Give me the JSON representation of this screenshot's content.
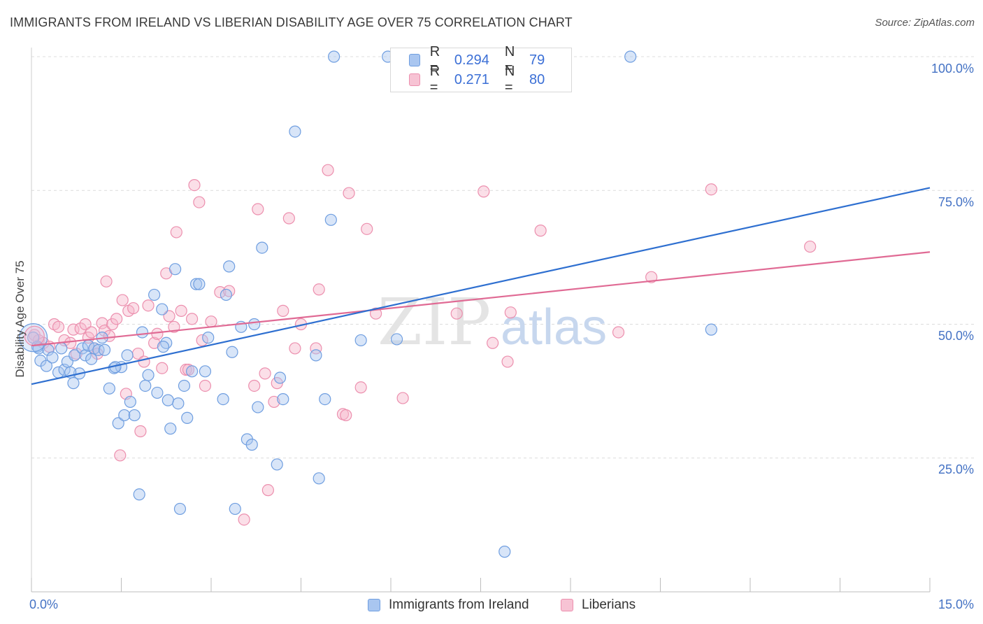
{
  "header": {
    "title": "IMMIGRANTS FROM IRELAND VS LIBERIAN DISABILITY AGE OVER 75 CORRELATION CHART",
    "source": "Source: ZipAtlas.com"
  },
  "legend": {
    "r_label": "R = ",
    "n_label": "N = ",
    "rows": [
      {
        "r": "0.294",
        "n": "79"
      },
      {
        "r": "0.271",
        "n": "80"
      }
    ]
  },
  "watermark": {
    "zip": "ZIP",
    "atlas": "atlas"
  },
  "colors": {
    "blue_fill": "#a9c6f0",
    "blue_stroke": "#6f9ee0",
    "blue_line": "#2e6fd0",
    "pink_fill": "#f7b8cd",
    "pink_stroke": "#ec8fae",
    "pink_line": "#e06a94",
    "tick_text": "#4472c4",
    "grid": "#dcdcdc"
  },
  "chart_data": {
    "type": "scatter",
    "title": "IMMIGRANTS FROM IRELAND VS LIBERIAN DISABILITY AGE OVER 75 CORRELATION CHART",
    "xlabel": "",
    "ylabel": "Disability Age Over 75",
    "xlim": [
      0,
      15
    ],
    "ylim": [
      0,
      102
    ],
    "x_tick_labels": [
      "0.0%",
      "15.0%"
    ],
    "y_ticks": [
      25,
      50,
      75,
      100
    ],
    "y_tick_labels": [
      "25.0%",
      "50.0%",
      "75.0%",
      "100.0%"
    ],
    "grid": true,
    "legend_position": "top-center",
    "series": [
      {
        "name": "Immigrants from Ireland",
        "color": "#6f9ee0",
        "r": 0.294,
        "n": 79,
        "trend": {
          "x": [
            0,
            15
          ],
          "y": [
            38.8,
            75.5
          ]
        },
        "points": [
          [
            0.03,
            47.5
          ],
          [
            0.1,
            45.8
          ],
          [
            0.12,
            45.5
          ],
          [
            0.15,
            43.2
          ],
          [
            0.25,
            42.2
          ],
          [
            0.28,
            45.2
          ],
          [
            0.35,
            43.8
          ],
          [
            0.45,
            41.0
          ],
          [
            0.55,
            41.5
          ],
          [
            0.6,
            43.0
          ],
          [
            0.7,
            39.0
          ],
          [
            0.72,
            44.2
          ],
          [
            0.8,
            40.8
          ],
          [
            0.85,
            45.5
          ],
          [
            0.9,
            44.2
          ],
          [
            0.95,
            46.0
          ],
          [
            1.0,
            43.5
          ],
          [
            1.05,
            45.5
          ],
          [
            1.12,
            45.2
          ],
          [
            1.18,
            47.5
          ],
          [
            1.22,
            45.2
          ],
          [
            1.3,
            38.0
          ],
          [
            1.38,
            41.8
          ],
          [
            1.45,
            31.5
          ],
          [
            1.5,
            42.0
          ],
          [
            1.55,
            33.0
          ],
          [
            1.6,
            44.2
          ],
          [
            1.65,
            35.5
          ],
          [
            1.72,
            33.0
          ],
          [
            1.8,
            18.2
          ],
          [
            1.85,
            48.5
          ],
          [
            1.9,
            38.5
          ],
          [
            1.95,
            40.5
          ],
          [
            2.05,
            55.5
          ],
          [
            2.1,
            37.2
          ],
          [
            2.18,
            52.8
          ],
          [
            2.25,
            46.5
          ],
          [
            2.28,
            35.8
          ],
          [
            2.32,
            30.5
          ],
          [
            2.4,
            60.3
          ],
          [
            2.45,
            35.2
          ],
          [
            2.48,
            15.5
          ],
          [
            2.55,
            38.5
          ],
          [
            2.6,
            32.5
          ],
          [
            2.68,
            41.2
          ],
          [
            2.75,
            57.5
          ],
          [
            2.8,
            57.5
          ],
          [
            2.9,
            41.2
          ],
          [
            2.95,
            47.5
          ],
          [
            3.2,
            36.0
          ],
          [
            3.25,
            55.5
          ],
          [
            3.3,
            60.8
          ],
          [
            3.35,
            44.8
          ],
          [
            3.4,
            15.5
          ],
          [
            3.5,
            49.5
          ],
          [
            3.6,
            28.5
          ],
          [
            3.68,
            27.5
          ],
          [
            3.72,
            50.0
          ],
          [
            3.78,
            34.5
          ],
          [
            3.85,
            64.3
          ],
          [
            4.1,
            23.8
          ],
          [
            4.15,
            40.0
          ],
          [
            4.2,
            36.0
          ],
          [
            4.4,
            86.0
          ],
          [
            4.75,
            44.2
          ],
          [
            4.8,
            21.2
          ],
          [
            4.9,
            36.0
          ],
          [
            5.0,
            69.5
          ],
          [
            5.05,
            100.0
          ],
          [
            5.5,
            47.0
          ],
          [
            5.95,
            100.0
          ],
          [
            6.1,
            47.2
          ],
          [
            10.0,
            100.0
          ],
          [
            11.35,
            49.0
          ],
          [
            7.9,
            7.5
          ],
          [
            0.5,
            45.5
          ],
          [
            0.65,
            41.0
          ],
          [
            1.4,
            42.0
          ],
          [
            2.2,
            45.8
          ]
        ]
      },
      {
        "name": "Liberians",
        "color": "#ec8fae",
        "r": 0.271,
        "n": 80,
        "trend": {
          "x": [
            0,
            15
          ],
          "y": [
            46.0,
            63.5
          ]
        },
        "points": [
          [
            0.05,
            48.0
          ],
          [
            0.12,
            47.0
          ],
          [
            0.2,
            46.5
          ],
          [
            0.3,
            45.8
          ],
          [
            0.38,
            50.0
          ],
          [
            0.45,
            49.5
          ],
          [
            0.55,
            47.0
          ],
          [
            0.65,
            46.5
          ],
          [
            0.7,
            49.0
          ],
          [
            0.75,
            44.5
          ],
          [
            0.82,
            49.2
          ],
          [
            0.9,
            50.0
          ],
          [
            0.95,
            47.5
          ],
          [
            1.0,
            48.5
          ],
          [
            1.05,
            45.5
          ],
          [
            1.1,
            44.5
          ],
          [
            1.18,
            50.2
          ],
          [
            1.22,
            48.8
          ],
          [
            1.25,
            58.0
          ],
          [
            1.3,
            47.8
          ],
          [
            1.35,
            50.0
          ],
          [
            1.42,
            51.0
          ],
          [
            1.48,
            25.5
          ],
          [
            1.52,
            54.5
          ],
          [
            1.58,
            37.0
          ],
          [
            1.62,
            52.5
          ],
          [
            1.7,
            53.0
          ],
          [
            1.78,
            44.5
          ],
          [
            1.82,
            30.0
          ],
          [
            1.88,
            43.0
          ],
          [
            1.95,
            53.5
          ],
          [
            2.05,
            46.5
          ],
          [
            2.1,
            48.2
          ],
          [
            2.18,
            41.8
          ],
          [
            2.25,
            59.5
          ],
          [
            2.3,
            51.5
          ],
          [
            2.38,
            49.5
          ],
          [
            2.42,
            67.2
          ],
          [
            2.5,
            52.5
          ],
          [
            2.58,
            41.5
          ],
          [
            2.62,
            41.5
          ],
          [
            2.68,
            51.0
          ],
          [
            2.72,
            76.0
          ],
          [
            2.8,
            72.8
          ],
          [
            2.85,
            47.0
          ],
          [
            2.9,
            38.5
          ],
          [
            3.0,
            50.5
          ],
          [
            3.15,
            56.0
          ],
          [
            3.3,
            56.2
          ],
          [
            3.55,
            13.5
          ],
          [
            3.72,
            38.5
          ],
          [
            3.78,
            71.5
          ],
          [
            3.9,
            40.8
          ],
          [
            3.95,
            19.0
          ],
          [
            4.05,
            35.5
          ],
          [
            4.1,
            39.0
          ],
          [
            4.2,
            52.5
          ],
          [
            4.3,
            69.8
          ],
          [
            4.4,
            45.5
          ],
          [
            4.5,
            50.0
          ],
          [
            4.75,
            45.5
          ],
          [
            4.8,
            56.5
          ],
          [
            4.95,
            78.8
          ],
          [
            5.2,
            33.2
          ],
          [
            5.3,
            74.5
          ],
          [
            5.5,
            38.2
          ],
          [
            5.6,
            67.8
          ],
          [
            5.75,
            52.0
          ],
          [
            6.2,
            36.2
          ],
          [
            7.1,
            52.0
          ],
          [
            7.55,
            74.8
          ],
          [
            7.7,
            46.5
          ],
          [
            7.95,
            43.0
          ],
          [
            8.0,
            52.2
          ],
          [
            8.5,
            67.5
          ],
          [
            9.8,
            48.5
          ],
          [
            10.35,
            58.8
          ],
          [
            11.35,
            75.2
          ],
          [
            13.0,
            64.5
          ],
          [
            5.25,
            33.0
          ]
        ]
      }
    ]
  },
  "bottom_legend": {
    "items": [
      {
        "label": "Immigrants from Ireland"
      },
      {
        "label": "Liberians"
      }
    ]
  }
}
